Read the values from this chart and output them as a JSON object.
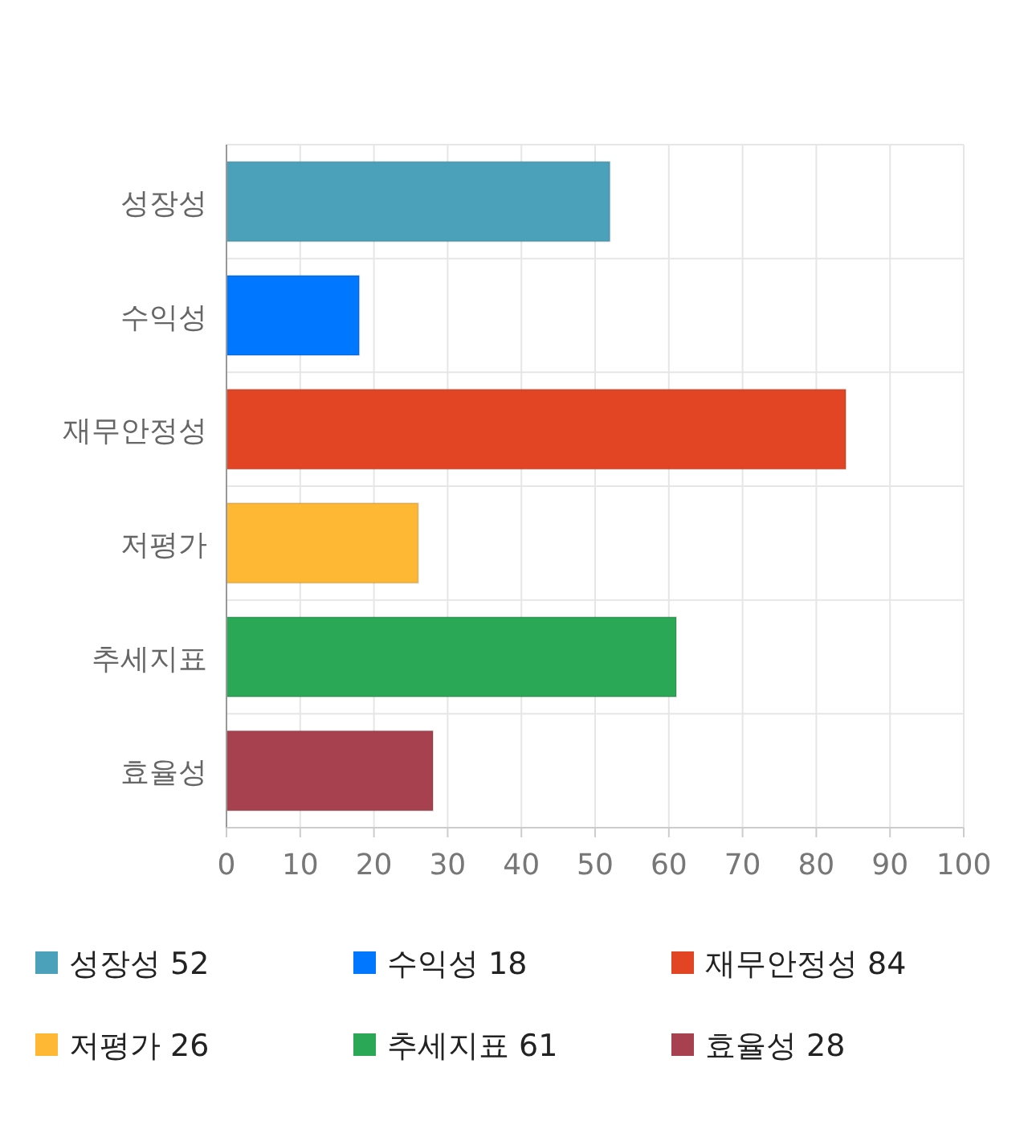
{
  "chart_data": {
    "type": "bar",
    "orientation": "horizontal",
    "stacked": true,
    "categories": [
      "성장성",
      "수익성",
      "재무안정성",
      "저평가",
      "추세지표",
      "효율성"
    ],
    "series": [
      {
        "name": "성장성 52",
        "color": "#4ba1ba",
        "values": [
          52,
          null,
          null,
          null,
          null,
          null
        ]
      },
      {
        "name": "수익성 18",
        "color": "#0077ff",
        "values": [
          null,
          18,
          null,
          null,
          null,
          null
        ]
      },
      {
        "name": "재무안정성 84",
        "color": "#e24523",
        "values": [
          null,
          null,
          84,
          null,
          null,
          null
        ]
      },
      {
        "name": "저평가 26",
        "color": "#ffb833",
        "values": [
          null,
          null,
          null,
          26,
          null,
          null
        ]
      },
      {
        "name": "추세지표 61",
        "color": "#2aa855",
        "values": [
          null,
          null,
          null,
          null,
          61,
          null
        ]
      },
      {
        "name": "효율성 28",
        "color": "#a8414f",
        "values": [
          null,
          null,
          null,
          null,
          null,
          28
        ]
      }
    ],
    "xlim": [
      0,
      100
    ],
    "xticks": [
      0,
      10,
      20,
      30,
      40,
      50,
      60,
      70,
      80,
      90,
      100
    ],
    "grid": true,
    "legend": "bottom"
  }
}
